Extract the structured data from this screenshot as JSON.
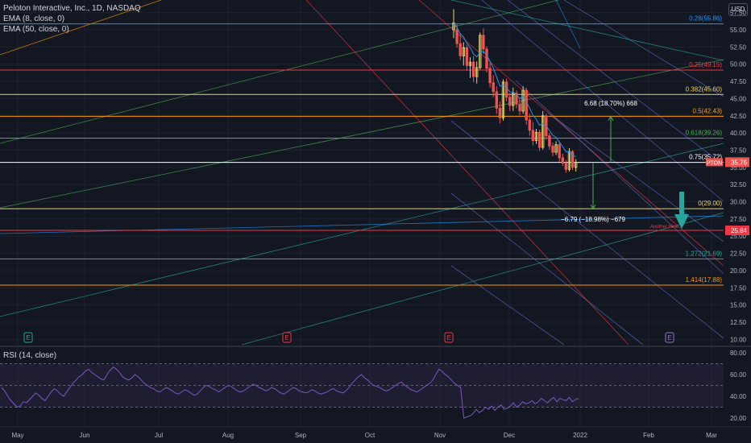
{
  "legend": {
    "symbol": "Peloton Interactive, Inc., 1D, NASDAQ",
    "ema8": "EMA (8, close, 0)",
    "ema50": "EMA (50, close, 0)",
    "rsi": "RSI (14, close)"
  },
  "currency": "USD",
  "colors": {
    "bg": "#131722",
    "grid": "#1e222d",
    "text": "#b2b5be",
    "up": "#e8d56a",
    "down": "#ef5350",
    "rsi": "#7e57c2"
  },
  "chart_data": {
    "type": "candlestick",
    "ticker": "PTON",
    "last_price": "35.76",
    "ylim": [
      8.9,
      57.5
    ],
    "y_ticks": [
      "57.50",
      "55.00",
      "52.50",
      "50.00",
      "47.50",
      "45.00",
      "42.50",
      "40.00",
      "37.50",
      "35.00",
      "32.50",
      "30.00",
      "27.50",
      "25.00",
      "22.50",
      "20.00",
      "17.50",
      "15.00",
      "12.50",
      "10.00"
    ],
    "x_ticks": [
      "May",
      "Jun",
      "Jul",
      "Aug",
      "Sep",
      "Oct",
      "Nov",
      "Dec",
      "2022",
      "Feb",
      "Mar"
    ],
    "fib_levels": [
      {
        "label": "0.28(55.86)",
        "value": 55.86,
        "color": "#2196f3"
      },
      {
        "label": "0.25(49.15)",
        "value": 49.15,
        "color": "#f23645"
      },
      {
        "label": "0.382(45.60)",
        "value": 45.6,
        "color": "#e8d56a"
      },
      {
        "label": "0.5(42.43)",
        "value": 42.43,
        "color": "#ff9800"
      },
      {
        "label": "0.618(39.26)",
        "value": 39.26,
        "color": "#4caf50"
      },
      {
        "label": "0.75(35.72)",
        "value": 35.72,
        "color": "#ffffff"
      },
      {
        "label": "0(29.00)",
        "value": 29.0,
        "color": "#e8d56a"
      },
      {
        "label": "1.272(21.69)",
        "value": 21.69,
        "color": "#26a69a"
      },
      {
        "label": "1.414(17.88)",
        "value": 17.88,
        "color": "#ff9800"
      }
    ],
    "horizontal_line": {
      "value": 25.84,
      "label": "25.84",
      "color": "#f23645",
      "annotation": "Another Hine"
    },
    "measure_up": "6.68 (18.70%) 668",
    "measure_down": "−6.79 (−18.98%) −679",
    "earnings_markers": [
      "E",
      "E",
      "E",
      "E"
    ],
    "candles": [
      {
        "o": 55,
        "h": 58,
        "l": 53.8,
        "c": 56
      },
      {
        "o": 55,
        "h": 55.8,
        "l": 52.4,
        "c": 53
      },
      {
        "o": 53,
        "h": 54.4,
        "l": 50.6,
        "c": 51.2
      },
      {
        "o": 51.2,
        "h": 53.2,
        "l": 49.8,
        "c": 52.4
      },
      {
        "o": 52.4,
        "h": 52.8,
        "l": 49,
        "c": 49.8
      },
      {
        "o": 49.8,
        "h": 51,
        "l": 48,
        "c": 50.3
      },
      {
        "o": 50.3,
        "h": 51.2,
        "l": 47.4,
        "c": 48.2
      },
      {
        "o": 48.2,
        "h": 50.4,
        "l": 47.2,
        "c": 49.5
      },
      {
        "o": 49.5,
        "h": 54.6,
        "l": 49.2,
        "c": 54.2
      },
      {
        "o": 54.2,
        "h": 55.2,
        "l": 51.5,
        "c": 52.2
      },
      {
        "o": 52.2,
        "h": 52.6,
        "l": 48.8,
        "c": 49.4
      },
      {
        "o": 49.4,
        "h": 50.2,
        "l": 46.6,
        "c": 47.3
      },
      {
        "o": 47.3,
        "h": 48.4,
        "l": 45.2,
        "c": 46
      },
      {
        "o": 46,
        "h": 46.8,
        "l": 42.8,
        "c": 43.6
      },
      {
        "o": 43.6,
        "h": 44.6,
        "l": 41.4,
        "c": 42.2
      },
      {
        "o": 42.2,
        "h": 47.8,
        "l": 41.8,
        "c": 47.4
      },
      {
        "o": 47.4,
        "h": 47.9,
        "l": 44.6,
        "c": 45.2
      },
      {
        "o": 45.2,
        "h": 45.8,
        "l": 43.2,
        "c": 44
      },
      {
        "o": 44,
        "h": 46.6,
        "l": 43.2,
        "c": 45.8
      },
      {
        "o": 45.8,
        "h": 46.2,
        "l": 43.6,
        "c": 44.2
      },
      {
        "o": 44.2,
        "h": 45,
        "l": 42.6,
        "c": 43.2
      },
      {
        "o": 43.2,
        "h": 46.8,
        "l": 42.8,
        "c": 46.2
      },
      {
        "o": 46.2,
        "h": 46.6,
        "l": 41.2,
        "c": 41.9
      },
      {
        "o": 41.9,
        "h": 42.8,
        "l": 39.6,
        "c": 40.4
      },
      {
        "o": 40.4,
        "h": 41.6,
        "l": 38.2,
        "c": 38.9
      },
      {
        "o": 38.9,
        "h": 40.6,
        "l": 38.4,
        "c": 40.1
      },
      {
        "o": 40.1,
        "h": 40.5,
        "l": 37.4,
        "c": 37.9
      },
      {
        "o": 37.9,
        "h": 43.2,
        "l": 37.6,
        "c": 42.5
      },
      {
        "o": 42.5,
        "h": 42.8,
        "l": 39,
        "c": 39.6
      },
      {
        "o": 39.6,
        "h": 40,
        "l": 37.6,
        "c": 38.1
      },
      {
        "o": 38.1,
        "h": 38.6,
        "l": 36.6,
        "c": 37.2
      },
      {
        "o": 37.2,
        "h": 38.8,
        "l": 36.8,
        "c": 38.3
      },
      {
        "o": 38.3,
        "h": 38.6,
        "l": 35.8,
        "c": 36.4
      },
      {
        "o": 36.4,
        "h": 37,
        "l": 35.2,
        "c": 35.6
      },
      {
        "o": 35.6,
        "h": 36.1,
        "l": 34.2,
        "c": 34.7
      },
      {
        "o": 34.7,
        "h": 37.8,
        "l": 34.4,
        "c": 37.3
      },
      {
        "o": 37.3,
        "h": 37.5,
        "l": 34.6,
        "c": 35
      },
      {
        "o": 35,
        "h": 36.2,
        "l": 34.4,
        "c": 35.76
      }
    ],
    "rsi": {
      "ylim": [
        14,
        86
      ],
      "y_ticks": [
        "80.00",
        "60.00",
        "40.00",
        "20.00"
      ],
      "bands": [
        70,
        50,
        30
      ],
      "values": [
        48,
        45,
        40,
        36,
        33,
        30,
        31,
        35,
        34,
        37,
        40,
        43,
        41,
        38,
        36,
        40,
        44,
        47,
        45,
        42,
        40,
        44,
        48,
        52,
        55,
        58,
        60,
        63,
        65,
        62,
        60,
        58,
        56,
        55,
        60,
        64,
        67,
        65,
        62,
        58,
        56,
        55,
        57,
        60,
        58,
        55,
        52,
        50,
        48,
        47,
        45,
        44,
        46,
        48,
        47,
        45,
        43,
        42,
        44,
        46,
        45,
        43,
        41,
        42,
        45,
        48,
        50,
        49,
        47,
        46,
        44,
        46,
        48,
        50,
        49,
        47,
        45,
        44,
        45,
        47,
        49,
        51,
        50,
        48,
        47,
        45,
        46,
        48,
        47,
        45,
        43,
        42,
        44,
        46,
        48,
        47,
        45,
        44,
        43,
        44,
        46,
        45,
        43,
        42,
        43,
        44,
        46,
        47,
        45,
        44,
        43,
        45,
        48,
        52,
        55,
        58,
        60,
        57,
        55,
        52,
        50,
        49,
        48,
        46,
        45,
        46,
        48,
        50,
        52,
        53,
        50,
        48,
        46,
        45,
        44,
        46,
        48,
        50,
        52,
        55,
        60,
        65,
        63,
        60,
        58,
        55,
        52,
        50,
        48,
        20,
        21,
        22,
        24,
        28,
        25,
        27,
        30,
        28,
        31,
        27,
        30,
        32,
        28,
        29,
        31,
        34,
        30,
        32,
        35,
        33,
        34,
        36,
        33,
        35,
        38,
        36,
        34,
        37,
        39,
        35,
        38,
        37,
        36,
        39,
        35,
        37,
        38
      ]
    }
  }
}
